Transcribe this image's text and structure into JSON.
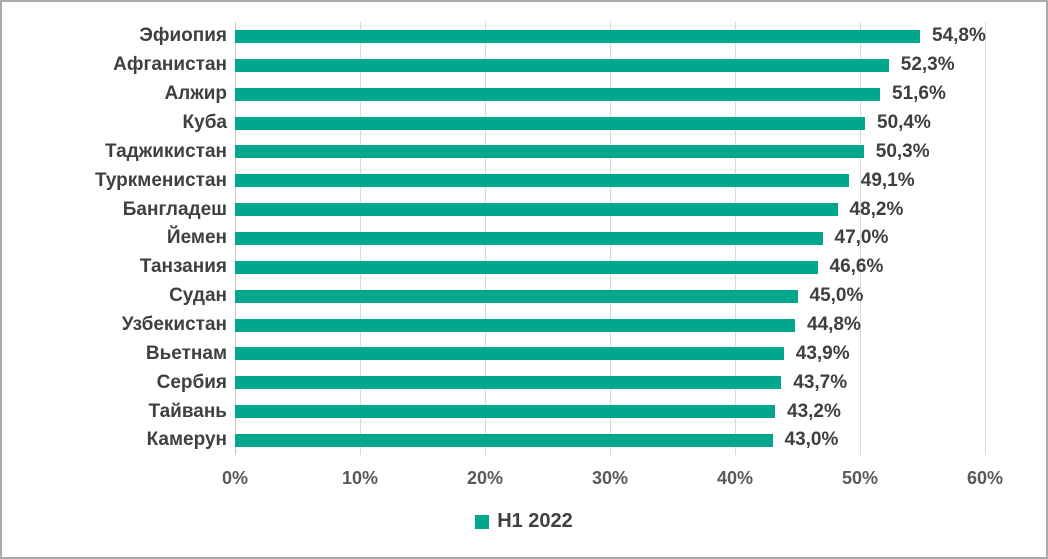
{
  "chart_data": {
    "type": "bar",
    "orientation": "horizontal",
    "title": "",
    "categories": [
      "Эфиопия",
      "Афганистан",
      "Алжир",
      "Куба",
      "Таджикистан",
      "Туркменистан",
      "Бангладеш",
      "Йемен",
      "Танзания",
      "Судан",
      "Узбекистан",
      "Вьетнам",
      "Сербия",
      "Тайвань",
      "Камерун"
    ],
    "values": [
      54.8,
      52.3,
      51.6,
      50.4,
      50.3,
      49.1,
      48.2,
      47.0,
      46.6,
      45.0,
      44.8,
      43.9,
      43.7,
      43.2,
      43.0
    ],
    "value_labels": [
      "54,8%",
      "52,3%",
      "51,6%",
      "50,4%",
      "50,3%",
      "49,1%",
      "48,2%",
      "47,0%",
      "46,6%",
      "45,0%",
      "44,8%",
      "43,9%",
      "43,7%",
      "43,2%",
      "43,0%"
    ],
    "xlabel": "",
    "ylabel": "",
    "xlim": [
      0,
      60
    ],
    "x_tick_step": 10,
    "x_ticks": [
      "0%",
      "10%",
      "20%",
      "30%",
      "40%",
      "50%",
      "60%"
    ],
    "grid": true,
    "legend": {
      "position": "bottom",
      "entries": [
        {
          "label": "H1 2022",
          "color": "#00a78d"
        }
      ]
    }
  },
  "colors": {
    "bar": "#00a78d",
    "grid": "#d9d9d9",
    "axis_line": "#c6c6c6",
    "category_label": "#404040",
    "value_label": "#3f3f3f",
    "tick_label": "#595959",
    "legend_label": "#404040",
    "border": "#ababab",
    "background": "#ffffff"
  }
}
